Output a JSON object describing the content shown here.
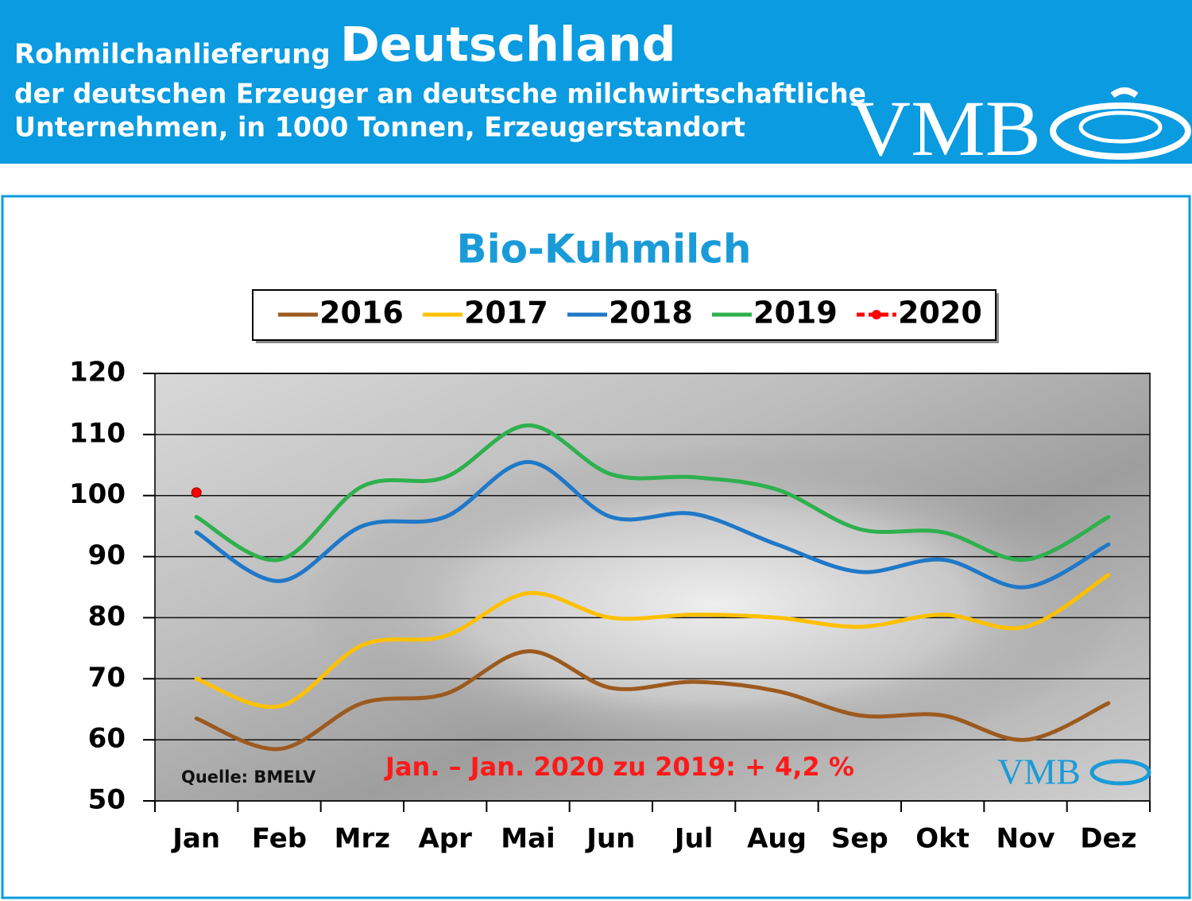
{
  "header": {
    "title_prefix": "Rohmilchanlieferung",
    "title_main": "Deutschland",
    "subtitle_lines": [
      "der deutschen Erzeuger an deutsche milchwirtschaftliche",
      "Unternehmen, in 1000 Tonnen, Erzeugerstandort"
    ],
    "logo": "VMB"
  },
  "chart_data": {
    "type": "line",
    "title": "Bio-Kuhmilch",
    "categories": [
      "Jan",
      "Feb",
      "Mrz",
      "Apr",
      "Mai",
      "Jun",
      "Jul",
      "Aug",
      "Sep",
      "Okt",
      "Nov",
      "Dez"
    ],
    "series": [
      {
        "name": "2016",
        "color": "#9c5a1e",
        "values": [
          63.5,
          58.5,
          66,
          67.5,
          74.5,
          68.5,
          69.5,
          68,
          64,
          64,
          60,
          66
        ]
      },
      {
        "name": "2017",
        "color": "#ffc000",
        "values": [
          70,
          65.5,
          75.5,
          77,
          84,
          80,
          80.5,
          80,
          78.5,
          80.5,
          78.5,
          87
        ]
      },
      {
        "name": "2018",
        "color": "#1f78c8",
        "values": [
          94,
          86,
          95,
          96.5,
          105.5,
          96.5,
          97,
          92,
          87.5,
          89.5,
          85,
          92
        ]
      },
      {
        "name": "2019",
        "color": "#2eb04e",
        "values": [
          96.5,
          89.5,
          101.5,
          103,
          111.5,
          103.5,
          103,
          101,
          94.5,
          94,
          89.5,
          96.5
        ]
      },
      {
        "name": "2020",
        "color": "#ff0000",
        "marker": "circle",
        "values": [
          100.5,
          null,
          null,
          null,
          null,
          null,
          null,
          null,
          null,
          null,
          null,
          null
        ]
      }
    ],
    "ylim": [
      50,
      120
    ],
    "yticks": [
      50,
      60,
      70,
      80,
      90,
      100,
      110,
      120
    ],
    "grid": true,
    "legend": "top",
    "source": "Quelle: BMELV",
    "annotation": "Jan. – Jan. 2020 zu 2019: + 4,2 %",
    "logo": "VMB"
  }
}
